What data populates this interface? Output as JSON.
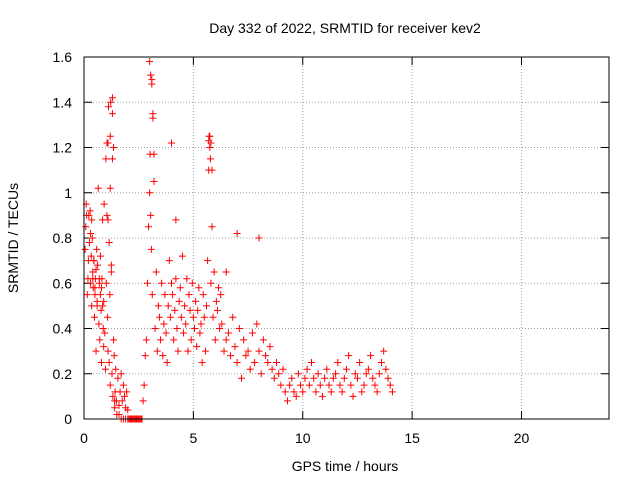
{
  "chart_data": {
    "type": "scatter",
    "title": "Day 332 of 2022, SRMTID for receiver kev2",
    "xlabel": "GPS time / hours",
    "ylabel": "SRMTID / TECUs",
    "xlim": [
      0,
      24
    ],
    "ylim": [
      0,
      1.6
    ],
    "xticks": [
      0,
      5,
      10,
      15,
      20
    ],
    "xtick_labels": [
      "0",
      "5",
      "10",
      "15",
      "20"
    ],
    "yticks": [
      0,
      0.2,
      0.4,
      0.6,
      0.8,
      1.0,
      1.2,
      1.4,
      1.6
    ],
    "ytick_labels": [
      "0",
      "0.2",
      "0.4",
      "0.6",
      "0.8",
      "1",
      "1.2",
      "1.4",
      "1.6"
    ],
    "grid": true,
    "marker": "+",
    "series": [
      {
        "name": "kev2",
        "color": "#ff0000",
        "x": [
          0.05,
          0.08,
          0.1,
          0.12,
          0.15,
          0.18,
          0.2,
          0.22,
          0.25,
          0.28,
          0.3,
          0.33,
          0.35,
          0.38,
          0.4,
          0.42,
          0.45,
          0.48,
          0.5,
          0.52,
          0.55,
          0.58,
          0.6,
          0.62,
          0.65,
          0.68,
          0.7,
          0.72,
          0.75,
          0.78,
          0.8,
          0.82,
          0.85,
          0.88,
          0.9,
          0.92,
          0.95,
          0.98,
          1.0,
          1.02,
          1.05,
          1.08,
          1.1,
          1.12,
          1.15,
          1.18,
          1.2,
          1.22,
          1.25,
          1.28,
          1.3,
          1.32,
          1.35,
          1.38,
          1.4,
          1.42,
          1.45,
          1.48,
          1.5,
          1.55,
          1.6,
          1.65,
          1.7,
          1.75,
          1.8,
          1.85,
          1.9,
          1.95,
          2.0,
          2.1,
          2.2,
          2.3,
          2.4,
          2.5,
          2.6,
          2.7,
          2.75,
          2.8,
          2.85,
          2.9,
          2.95,
          3.0,
          3.02,
          3.05,
          3.08,
          3.1,
          3.12,
          3.15,
          3.2,
          3.25,
          3.3,
          3.35,
          3.4,
          3.45,
          3.5,
          3.55,
          3.6,
          3.65,
          3.7,
          3.75,
          3.8,
          3.85,
          3.9,
          3.95,
          4.0,
          4.05,
          4.1,
          4.15,
          4.2,
          4.25,
          4.3,
          4.35,
          4.4,
          4.45,
          4.5,
          4.55,
          4.6,
          4.65,
          4.7,
          4.75,
          4.8,
          4.85,
          4.9,
          4.95,
          5.0,
          5.05,
          5.1,
          5.15,
          5.2,
          5.25,
          5.3,
          5.35,
          5.4,
          5.45,
          5.5,
          5.55,
          5.6,
          5.65,
          5.7,
          5.72,
          5.75,
          5.78,
          5.8,
          5.85,
          5.9,
          5.95,
          6.0,
          6.05,
          6.1,
          6.15,
          6.2,
          6.25,
          6.3,
          6.4,
          6.5,
          6.6,
          6.7,
          6.8,
          6.9,
          7.0,
          7.1,
          7.2,
          7.3,
          7.4,
          7.5,
          7.6,
          7.7,
          7.8,
          7.9,
          8.0,
          8.1,
          8.2,
          8.3,
          8.4,
          8.5,
          8.6,
          8.7,
          8.8,
          8.9,
          9.0,
          9.1,
          9.2,
          9.3,
          9.4,
          9.5,
          9.6,
          9.7,
          9.8,
          9.9,
          10.0,
          10.1,
          10.2,
          10.3,
          10.4,
          10.5,
          10.6,
          10.7,
          10.8,
          10.9,
          11.0,
          11.1,
          11.2,
          11.3,
          11.4,
          11.5,
          11.6,
          11.7,
          11.8,
          11.9,
          12.0,
          12.1,
          12.2,
          12.3,
          12.4,
          12.5,
          12.6,
          12.7,
          12.8,
          12.9,
          13.0,
          13.1,
          13.2,
          13.3,
          13.4,
          13.5,
          13.6,
          13.7,
          13.8,
          13.9,
          14.0,
          14.1,
          1.05,
          1.1,
          1.15,
          1.2,
          1.25,
          1.1,
          1.2,
          1.3,
          0.3,
          0.35,
          0.4,
          0.45,
          0.5,
          0.55,
          0.6,
          3.0,
          3.05,
          3.1,
          3.15,
          3.2,
          4.0,
          4.2,
          5.7,
          5.75,
          5.8,
          5.85,
          0.7,
          0.75,
          0.8,
          0.85,
          0.9,
          1.3,
          1.35,
          1.4,
          1.6,
          1.7,
          1.8,
          1.9,
          2.0,
          2.05,
          2.1,
          2.15,
          2.2,
          2.25,
          2.3,
          2.35,
          2.4,
          2.45,
          2.5,
          2.55,
          2.6,
          2.65,
          7.0,
          8.0,
          6.5
        ],
        "y": [
          0.75,
          0.85,
          0.95,
          0.9,
          0.55,
          0.62,
          0.7,
          0.9,
          0.78,
          0.92,
          0.6,
          0.72,
          0.5,
          0.8,
          0.65,
          0.58,
          0.7,
          0.45,
          0.55,
          0.62,
          0.3,
          0.75,
          0.5,
          0.68,
          1.02,
          0.42,
          0.6,
          0.35,
          0.55,
          0.48,
          0.25,
          0.62,
          0.88,
          0.4,
          0.52,
          0.95,
          0.38,
          0.22,
          1.15,
          0.6,
          1.22,
          0.45,
          0.3,
          1.38,
          0.25,
          0.55,
          0.15,
          1.4,
          0.65,
          0.2,
          1.42,
          0.1,
          0.35,
          0.28,
          0.05,
          0.12,
          0.22,
          0.08,
          0.02,
          0.18,
          0.06,
          0.12,
          0.2,
          0.08,
          0.15,
          0.1,
          0.05,
          0.12,
          0.04,
          0.0,
          0.0,
          0.0,
          0.0,
          0.0,
          0.0,
          0.08,
          0.15,
          0.28,
          0.35,
          0.6,
          0.85,
          1.0,
          1.17,
          0.9,
          0.75,
          1.5,
          0.55,
          1.35,
          1.05,
          0.4,
          0.65,
          0.3,
          0.5,
          0.45,
          0.35,
          0.6,
          0.28,
          0.42,
          0.55,
          0.38,
          0.25,
          0.5,
          0.7,
          0.45,
          0.6,
          0.55,
          0.35,
          0.48,
          0.62,
          0.4,
          0.3,
          0.52,
          0.58,
          0.45,
          0.72,
          0.38,
          0.5,
          0.42,
          0.62,
          0.3,
          0.55,
          0.48,
          0.35,
          0.6,
          0.45,
          0.4,
          0.52,
          0.32,
          0.48,
          0.58,
          0.38,
          0.42,
          0.25,
          0.55,
          0.45,
          0.3,
          0.5,
          0.7,
          1.1,
          1.25,
          1.2,
          1.15,
          0.6,
          0.85,
          0.45,
          0.65,
          0.35,
          0.52,
          0.48,
          0.58,
          0.4,
          0.55,
          0.42,
          0.3,
          0.35,
          0.38,
          0.28,
          0.45,
          0.32,
          0.25,
          0.4,
          0.18,
          0.35,
          0.28,
          0.3,
          0.22,
          0.38,
          0.25,
          0.42,
          0.3,
          0.2,
          0.35,
          0.28,
          0.25,
          0.32,
          0.22,
          0.18,
          0.25,
          0.2,
          0.15,
          0.22,
          0.12,
          0.08,
          0.15,
          0.18,
          0.12,
          0.1,
          0.2,
          0.15,
          0.12,
          0.18,
          0.22,
          0.15,
          0.25,
          0.18,
          0.12,
          0.2,
          0.15,
          0.1,
          0.18,
          0.22,
          0.15,
          0.12,
          0.18,
          0.2,
          0.25,
          0.15,
          0.12,
          0.18,
          0.22,
          0.28,
          0.15,
          0.1,
          0.2,
          0.18,
          0.25,
          0.12,
          0.15,
          0.2,
          0.22,
          0.28,
          0.18,
          0.15,
          0.12,
          0.2,
          0.25,
          0.3,
          0.22,
          0.18,
          0.15,
          0.12,
          0.9,
          0.88,
          0.78,
          1.02,
          0.68,
          1.22,
          1.25,
          1.15,
          0.82,
          0.88,
          0.62,
          0.7,
          0.58,
          0.66,
          0.52,
          1.58,
          1.52,
          1.48,
          1.33,
          1.17,
          1.22,
          0.88,
          1.23,
          1.25,
          1.22,
          1.1,
          0.62,
          0.72,
          0.58,
          0.5,
          0.32,
          1.35,
          1.2,
          0.08,
          0.02,
          0.0,
          0.0,
          0.0,
          0.0,
          0.0,
          0.0,
          0.0,
          0.0,
          0.0,
          0.0,
          0.0,
          0.0,
          0.0,
          0.0,
          0.0,
          0.0,
          0.0,
          0.82,
          0.8,
          0.65
        ]
      }
    ]
  }
}
